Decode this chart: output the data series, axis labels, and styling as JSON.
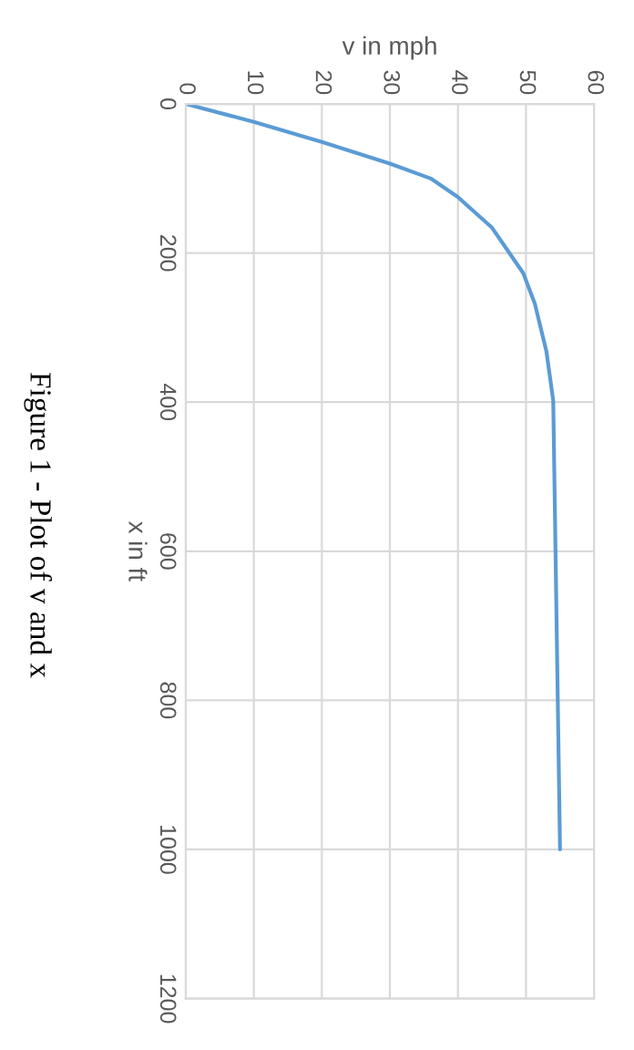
{
  "chart_data": {
    "type": "line",
    "xlabel": "v in mph",
    "ylabel": "x in ft",
    "annotations": [
      "Figure 1 - Plot of v and x"
    ],
    "series": [
      {
        "color": "#5b9bd5",
        "x": [
          0,
          10,
          20,
          30,
          36,
          40,
          45,
          49.6,
          51.3,
          53,
          54,
          55
        ],
        "values": [
          0,
          24,
          51,
          80,
          100,
          125,
          166,
          227,
          268,
          332,
          398,
          1000
        ]
      }
    ],
    "xlim": [
      0,
      60
    ],
    "xticks": [
      0,
      10,
      20,
      30,
      40,
      50,
      60
    ],
    "ylim": [
      1200,
      0
    ],
    "yticks": [
      0,
      200,
      400,
      600,
      800,
      1000,
      1200
    ],
    "grid": true,
    "marker": "none",
    "line_style": "solid"
  }
}
